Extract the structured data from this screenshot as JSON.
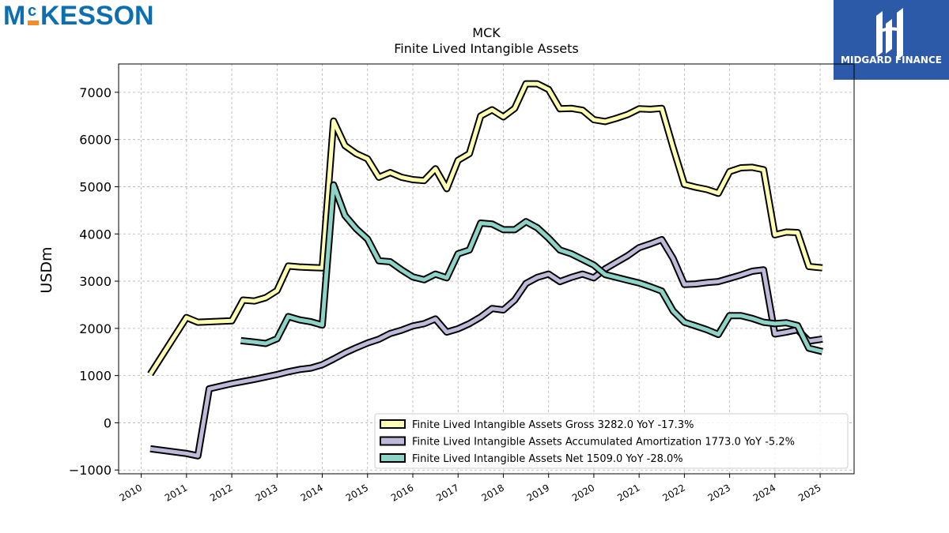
{
  "brand": {
    "company": "McKESSON",
    "company_prefix": "M",
    "company_small": "c",
    "company_rest": "KESSON",
    "company_color": "#0d6fb0",
    "accent_color": "#f28c28",
    "watermark": "MIDGARD FINANCE",
    "watermark_bg": "#2c5aa8"
  },
  "chart_data": {
    "type": "line",
    "title": "MCK",
    "subtitle": "Finite Lived Intangible Assets",
    "xlabel": "",
    "ylabel": "USDm",
    "xlim": [
      2009.5,
      2025.75
    ],
    "ylim": [
      -1080,
      7600
    ],
    "x_ticks": [
      2010,
      2011,
      2012,
      2013,
      2014,
      2015,
      2016,
      2017,
      2018,
      2019,
      2020,
      2021,
      2022,
      2023,
      2024,
      2025
    ],
    "y_ticks": [
      -1000,
      0,
      1000,
      2000,
      3000,
      4000,
      5000,
      6000,
      7000
    ],
    "grid": true,
    "legend_position": "lower-right",
    "series": [
      {
        "name": "Finite Lived Intangible Assets Gross",
        "legend": "Finite Lived Intangible Assets Gross  3282.0 YoY -17.3%",
        "color": "#ffffb3",
        "points": [
          [
            2010.2,
            1030
          ],
          [
            2011.0,
            2230
          ],
          [
            2011.25,
            2130
          ],
          [
            2011.5,
            2140
          ],
          [
            2012.0,
            2160
          ],
          [
            2012.25,
            2600
          ],
          [
            2012.5,
            2580
          ],
          [
            2012.75,
            2650
          ],
          [
            2013.0,
            2800
          ],
          [
            2013.25,
            3320
          ],
          [
            2013.5,
            3300
          ],
          [
            2013.75,
            3290
          ],
          [
            2014.0,
            3280
          ],
          [
            2014.25,
            6390
          ],
          [
            2014.5,
            5870
          ],
          [
            2014.75,
            5700
          ],
          [
            2015.0,
            5590
          ],
          [
            2015.25,
            5200
          ],
          [
            2015.5,
            5300
          ],
          [
            2015.75,
            5200
          ],
          [
            2016.0,
            5150
          ],
          [
            2016.25,
            5130
          ],
          [
            2016.5,
            5380
          ],
          [
            2016.75,
            4960
          ],
          [
            2017.0,
            5560
          ],
          [
            2017.25,
            5700
          ],
          [
            2017.5,
            6500
          ],
          [
            2017.75,
            6630
          ],
          [
            2018.0,
            6480
          ],
          [
            2018.25,
            6660
          ],
          [
            2018.5,
            7180
          ],
          [
            2018.75,
            7180
          ],
          [
            2019.0,
            7060
          ],
          [
            2019.25,
            6650
          ],
          [
            2019.5,
            6660
          ],
          [
            2019.75,
            6620
          ],
          [
            2020.0,
            6420
          ],
          [
            2020.25,
            6380
          ],
          [
            2020.5,
            6450
          ],
          [
            2020.75,
            6530
          ],
          [
            2021.0,
            6650
          ],
          [
            2021.25,
            6640
          ],
          [
            2021.5,
            6660
          ],
          [
            2021.75,
            5830
          ],
          [
            2022.0,
            5050
          ],
          [
            2022.25,
            4990
          ],
          [
            2022.5,
            4940
          ],
          [
            2022.75,
            4860
          ],
          [
            2023.0,
            5320
          ],
          [
            2023.25,
            5400
          ],
          [
            2023.5,
            5410
          ],
          [
            2023.75,
            5360
          ],
          [
            2024.0,
            3980
          ],
          [
            2024.25,
            4040
          ],
          [
            2024.5,
            4030
          ],
          [
            2024.75,
            3310
          ],
          [
            2025.05,
            3282
          ]
        ]
      },
      {
        "name": "Finite Lived Intangible Assets Accumulated Amortization",
        "legend": "Finite Lived Intangible Assets Accumulated Amortization  1773.0 YoY -5.2%",
        "color": "#bebada",
        "points": [
          [
            2010.2,
            -550
          ],
          [
            2011.0,
            -650
          ],
          [
            2011.25,
            -700
          ],
          [
            2011.5,
            720
          ],
          [
            2012.0,
            830
          ],
          [
            2012.5,
            920
          ],
          [
            2013.0,
            1020
          ],
          [
            2013.25,
            1080
          ],
          [
            2013.5,
            1130
          ],
          [
            2013.75,
            1160
          ],
          [
            2014.0,
            1230
          ],
          [
            2014.25,
            1350
          ],
          [
            2014.5,
            1480
          ],
          [
            2014.75,
            1590
          ],
          [
            2015.0,
            1690
          ],
          [
            2015.25,
            1770
          ],
          [
            2015.5,
            1890
          ],
          [
            2015.75,
            1960
          ],
          [
            2016.0,
            2050
          ],
          [
            2016.25,
            2100
          ],
          [
            2016.5,
            2200
          ],
          [
            2016.75,
            1920
          ],
          [
            2017.0,
            1990
          ],
          [
            2017.25,
            2100
          ],
          [
            2017.5,
            2240
          ],
          [
            2017.75,
            2420
          ],
          [
            2018.0,
            2390
          ],
          [
            2018.25,
            2600
          ],
          [
            2018.5,
            2950
          ],
          [
            2018.75,
            3080
          ],
          [
            2019.0,
            3150
          ],
          [
            2019.25,
            2990
          ],
          [
            2019.5,
            3080
          ],
          [
            2019.75,
            3150
          ],
          [
            2020.0,
            3070
          ],
          [
            2020.25,
            3260
          ],
          [
            2020.5,
            3400
          ],
          [
            2020.75,
            3540
          ],
          [
            2021.0,
            3710
          ],
          [
            2021.25,
            3790
          ],
          [
            2021.5,
            3880
          ],
          [
            2021.75,
            3480
          ],
          [
            2022.0,
            2930
          ],
          [
            2022.25,
            2940
          ],
          [
            2022.5,
            2970
          ],
          [
            2022.75,
            2990
          ],
          [
            2023.0,
            3060
          ],
          [
            2023.25,
            3130
          ],
          [
            2023.5,
            3210
          ],
          [
            2023.75,
            3240
          ],
          [
            2024.0,
            1880
          ],
          [
            2024.25,
            1920
          ],
          [
            2024.5,
            1970
          ],
          [
            2024.75,
            1730
          ],
          [
            2025.05,
            1773
          ]
        ]
      },
      {
        "name": "Finite Lived Intangible Assets Net",
        "legend": "Finite Lived Intangible Assets Net  1509.0 YoY -28.0%",
        "color": "#8dd3c7",
        "points": [
          [
            2012.2,
            1740
          ],
          [
            2012.5,
            1710
          ],
          [
            2012.75,
            1680
          ],
          [
            2013.0,
            1780
          ],
          [
            2013.25,
            2250
          ],
          [
            2013.5,
            2180
          ],
          [
            2013.75,
            2140
          ],
          [
            2014.0,
            2070
          ],
          [
            2014.25,
            5040
          ],
          [
            2014.5,
            4390
          ],
          [
            2014.75,
            4110
          ],
          [
            2015.0,
            3890
          ],
          [
            2015.25,
            3430
          ],
          [
            2015.5,
            3410
          ],
          [
            2015.75,
            3240
          ],
          [
            2016.0,
            3090
          ],
          [
            2016.25,
            3030
          ],
          [
            2016.5,
            3150
          ],
          [
            2016.75,
            3070
          ],
          [
            2017.0,
            3580
          ],
          [
            2017.25,
            3660
          ],
          [
            2017.5,
            4230
          ],
          [
            2017.75,
            4210
          ],
          [
            2018.0,
            4090
          ],
          [
            2018.25,
            4090
          ],
          [
            2018.5,
            4260
          ],
          [
            2018.75,
            4130
          ],
          [
            2019.0,
            3910
          ],
          [
            2019.25,
            3660
          ],
          [
            2019.5,
            3580
          ],
          [
            2019.75,
            3460
          ],
          [
            2020.0,
            3340
          ],
          [
            2020.25,
            3140
          ],
          [
            2020.5,
            3080
          ],
          [
            2020.75,
            3020
          ],
          [
            2021.0,
            2960
          ],
          [
            2021.25,
            2880
          ],
          [
            2021.5,
            2790
          ],
          [
            2021.75,
            2370
          ],
          [
            2022.0,
            2130
          ],
          [
            2022.25,
            2050
          ],
          [
            2022.5,
            1970
          ],
          [
            2022.75,
            1870
          ],
          [
            2023.0,
            2270
          ],
          [
            2023.25,
            2270
          ],
          [
            2023.5,
            2210
          ],
          [
            2023.75,
            2130
          ],
          [
            2024.0,
            2100
          ],
          [
            2024.25,
            2120
          ],
          [
            2024.5,
            2060
          ],
          [
            2024.75,
            1580
          ],
          [
            2025.05,
            1509
          ]
        ]
      }
    ]
  }
}
